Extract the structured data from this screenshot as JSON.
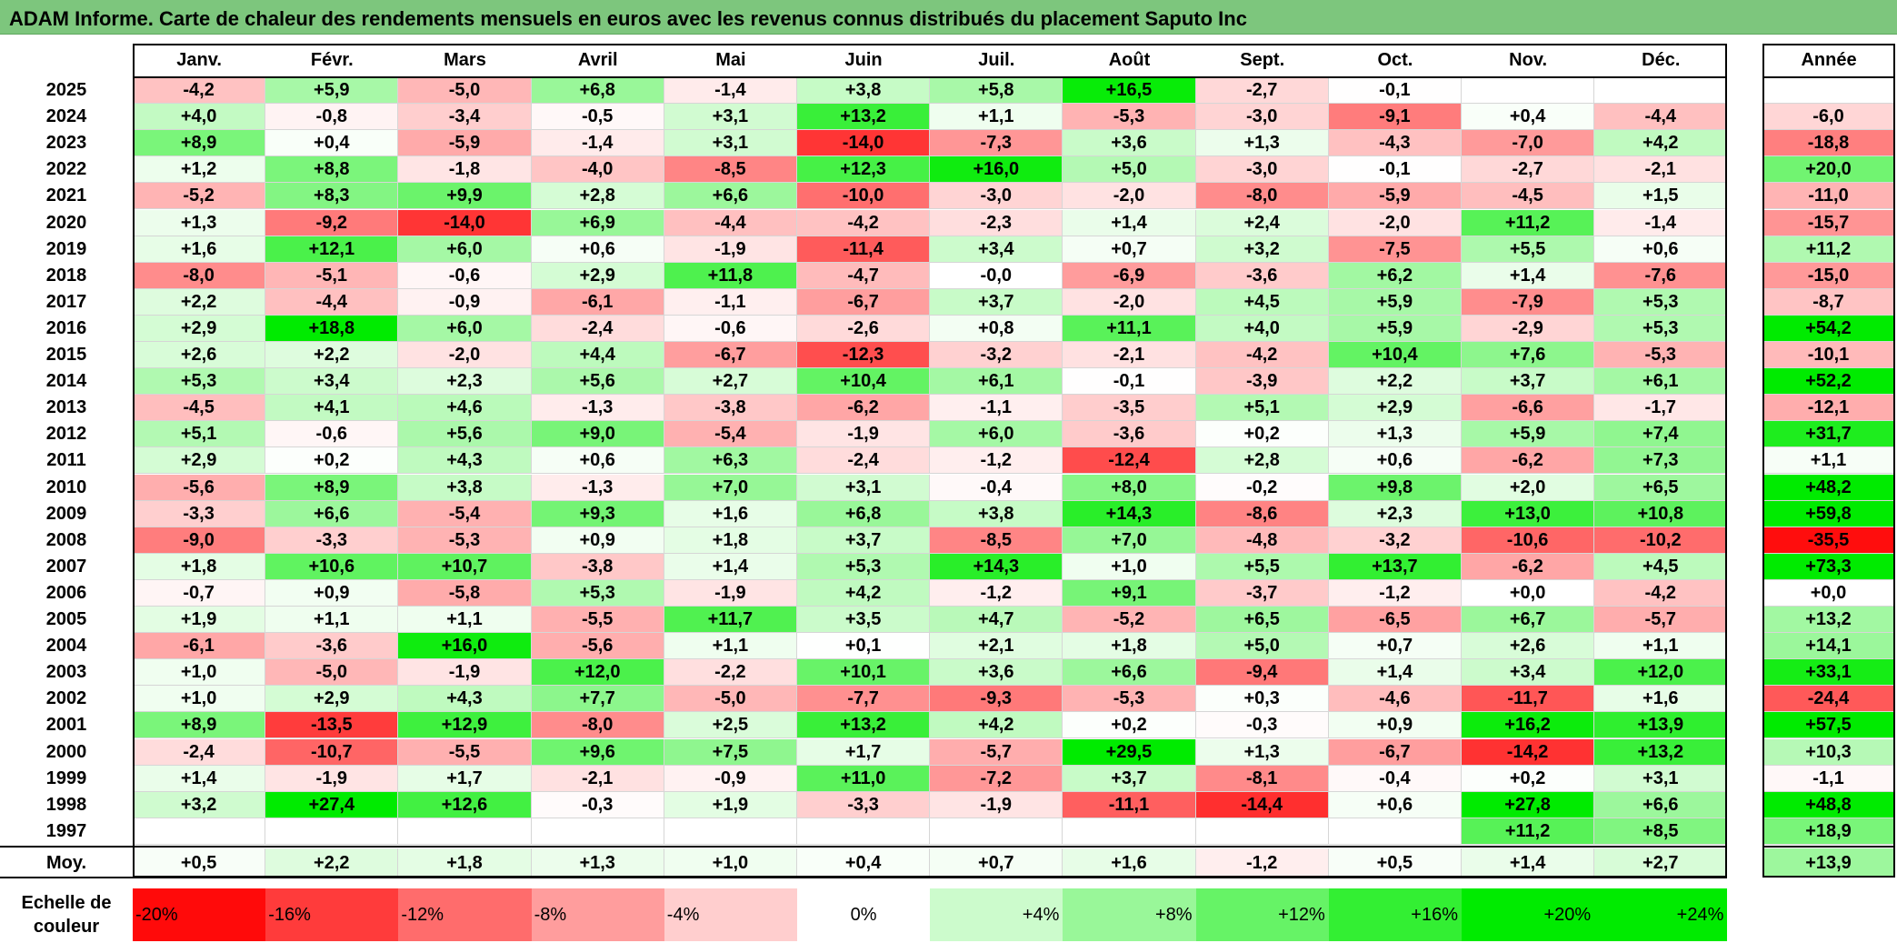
{
  "title": "ADAM Informe. Carte de chaleur des rendements mensuels en euros avec les revenus connus distribués du placement Saputo Inc",
  "chart_data": {
    "type": "heatmap",
    "title": "ADAM Informe. Carte de chaleur des rendements mensuels en euros avec les revenus connus distribués du placement Saputo Inc",
    "months": [
      "Janv.",
      "Févr.",
      "Mars",
      "Avril",
      "Mai",
      "Juin",
      "Juil.",
      "Août",
      "Sept.",
      "Oct.",
      "Nov.",
      "Déc."
    ],
    "year_header": "Année",
    "rows": [
      {
        "year": "2025",
        "values": [
          "-4,2",
          "+5,9",
          "-5,0",
          "+6,8",
          "-1,4",
          "+3,8",
          "+5,8",
          "+16,5",
          "-2,7",
          "-0,1",
          "",
          ""
        ],
        "annual": ""
      },
      {
        "year": "2024",
        "values": [
          "+4,0",
          "-0,8",
          "-3,4",
          "-0,5",
          "+3,1",
          "+13,2",
          "+1,1",
          "-5,3",
          "-3,0",
          "-9,1",
          "+0,4",
          "-4,4"
        ],
        "annual": "-6,0"
      },
      {
        "year": "2023",
        "values": [
          "+8,9",
          "+0,4",
          "-5,9",
          "-1,4",
          "+3,1",
          "-14,0",
          "-7,3",
          "+3,6",
          "+1,3",
          "-4,3",
          "-7,0",
          "+4,2"
        ],
        "annual": "-18,8"
      },
      {
        "year": "2022",
        "values": [
          "+1,2",
          "+8,8",
          "-1,8",
          "-4,0",
          "-8,5",
          "+12,3",
          "+16,0",
          "+5,0",
          "-3,0",
          "-0,1",
          "-2,7",
          "-2,1"
        ],
        "annual": "+20,0"
      },
      {
        "year": "2021",
        "values": [
          "-5,2",
          "+8,3",
          "+9,9",
          "+2,8",
          "+6,6",
          "-10,0",
          "-3,0",
          "-2,0",
          "-8,0",
          "-5,9",
          "-4,5",
          "+1,5"
        ],
        "annual": "-11,0"
      },
      {
        "year": "2020",
        "values": [
          "+1,3",
          "-9,2",
          "-14,0",
          "+6,9",
          "-4,4",
          "-4,2",
          "-2,3",
          "+1,4",
          "+2,4",
          "-2,0",
          "+11,2",
          "-1,4"
        ],
        "annual": "-15,7"
      },
      {
        "year": "2019",
        "values": [
          "+1,6",
          "+12,1",
          "+6,0",
          "+0,6",
          "-1,9",
          "-11,4",
          "+3,4",
          "+0,7",
          "+3,2",
          "-7,5",
          "+5,5",
          "+0,6"
        ],
        "annual": "+11,2"
      },
      {
        "year": "2018",
        "values": [
          "-8,0",
          "-5,1",
          "-0,6",
          "+2,9",
          "+11,8",
          "-4,7",
          "-0,0",
          "-6,9",
          "-3,6",
          "+6,2",
          "+1,4",
          "-7,6"
        ],
        "annual": "-15,0"
      },
      {
        "year": "2017",
        "values": [
          "+2,2",
          "-4,4",
          "-0,9",
          "-6,1",
          "-1,1",
          "-6,7",
          "+3,7",
          "-2,0",
          "+4,5",
          "+5,9",
          "-7,9",
          "+5,3"
        ],
        "annual": "-8,7"
      },
      {
        "year": "2016",
        "values": [
          "+2,9",
          "+18,8",
          "+6,0",
          "-2,4",
          "-0,6",
          "-2,6",
          "+0,8",
          "+11,1",
          "+4,0",
          "+5,9",
          "-2,9",
          "+5,3"
        ],
        "annual": "+54,2"
      },
      {
        "year": "2015",
        "values": [
          "+2,6",
          "+2,2",
          "-2,0",
          "+4,4",
          "-6,7",
          "-12,3",
          "-3,2",
          "-2,1",
          "-4,2",
          "+10,4",
          "+7,6",
          "-5,3"
        ],
        "annual": "-10,1"
      },
      {
        "year": "2014",
        "values": [
          "+5,3",
          "+3,4",
          "+2,3",
          "+5,6",
          "+2,7",
          "+10,4",
          "+6,1",
          "-0,1",
          "-3,9",
          "+2,2",
          "+3,7",
          "+6,1"
        ],
        "annual": "+52,2"
      },
      {
        "year": "2013",
        "values": [
          "-4,5",
          "+4,1",
          "+4,6",
          "-1,3",
          "-3,8",
          "-6,2",
          "-1,1",
          "-3,5",
          "+5,1",
          "+2,9",
          "-6,6",
          "-1,7"
        ],
        "annual": "-12,1"
      },
      {
        "year": "2012",
        "values": [
          "+5,1",
          "-0,6",
          "+5,6",
          "+9,0",
          "-5,4",
          "-1,9",
          "+6,0",
          "-3,6",
          "+0,2",
          "+1,3",
          "+5,9",
          "+7,4"
        ],
        "annual": "+31,7"
      },
      {
        "year": "2011",
        "values": [
          "+2,9",
          "+0,2",
          "+4,3",
          "+0,6",
          "+6,3",
          "-2,4",
          "-1,2",
          "-12,4",
          "+2,8",
          "+0,6",
          "-6,2",
          "+7,3"
        ],
        "annual": "+1,1"
      },
      {
        "year": "2010",
        "values": [
          "-5,6",
          "+8,9",
          "+3,8",
          "-1,3",
          "+7,0",
          "+3,1",
          "-0,4",
          "+8,0",
          "-0,2",
          "+9,8",
          "+2,0",
          "+6,5"
        ],
        "annual": "+48,2"
      },
      {
        "year": "2009",
        "values": [
          "-3,3",
          "+6,6",
          "-5,4",
          "+9,3",
          "+1,6",
          "+6,8",
          "+3,8",
          "+14,3",
          "-8,6",
          "+2,3",
          "+13,0",
          "+10,8"
        ],
        "annual": "+59,8"
      },
      {
        "year": "2008",
        "values": [
          "-9,0",
          "-3,3",
          "-5,3",
          "+0,9",
          "+1,8",
          "+3,7",
          "-8,5",
          "+7,0",
          "-4,8",
          "-3,2",
          "-10,6",
          "-10,2"
        ],
        "annual": "-35,5"
      },
      {
        "year": "2007",
        "values": [
          "+1,8",
          "+10,6",
          "+10,7",
          "-3,8",
          "+1,4",
          "+5,3",
          "+14,3",
          "+1,0",
          "+5,5",
          "+13,7",
          "-6,2",
          "+4,5"
        ],
        "annual": "+73,3"
      },
      {
        "year": "2006",
        "values": [
          "-0,7",
          "+0,9",
          "-5,8",
          "+5,3",
          "-1,9",
          "+4,2",
          "-1,2",
          "+9,1",
          "-3,7",
          "-1,2",
          "+0,0",
          "-4,2"
        ],
        "annual": "+0,0"
      },
      {
        "year": "2005",
        "values": [
          "+1,9",
          "+1,1",
          "+1,1",
          "-5,5",
          "+11,7",
          "+3,5",
          "+4,7",
          "-5,2",
          "+6,5",
          "-6,5",
          "+6,7",
          "-5,7"
        ],
        "annual": "+13,2"
      },
      {
        "year": "2004",
        "values": [
          "-6,1",
          "-3,6",
          "+16,0",
          "-5,6",
          "+1,1",
          "+0,1",
          "+2,1",
          "+1,8",
          "+5,0",
          "+0,7",
          "+2,6",
          "+1,1"
        ],
        "annual": "+14,1"
      },
      {
        "year": "2003",
        "values": [
          "+1,0",
          "-5,0",
          "-1,9",
          "+12,0",
          "-2,2",
          "+10,1",
          "+3,6",
          "+6,6",
          "-9,4",
          "+1,4",
          "+3,4",
          "+12,0"
        ],
        "annual": "+33,1"
      },
      {
        "year": "2002",
        "values": [
          "+1,0",
          "+2,9",
          "+4,3",
          "+7,7",
          "-5,0",
          "-7,7",
          "-9,3",
          "-5,3",
          "+0,3",
          "-4,6",
          "-11,7",
          "+1,6"
        ],
        "annual": "-24,4"
      },
      {
        "year": "2001",
        "values": [
          "+8,9",
          "-13,5",
          "+12,9",
          "-8,0",
          "+2,5",
          "+13,2",
          "+4,2",
          "+0,2",
          "-0,3",
          "+0,9",
          "+16,2",
          "+13,9"
        ],
        "annual": "+57,5"
      },
      {
        "year": "2000",
        "values": [
          "-2,4",
          "-10,7",
          "-5,5",
          "+9,6",
          "+7,5",
          "+1,7",
          "-5,7",
          "+29,5",
          "+1,3",
          "-6,7",
          "-14,2",
          "+13,2"
        ],
        "annual": "+10,3"
      },
      {
        "year": "1999",
        "values": [
          "+1,4",
          "-1,9",
          "+1,7",
          "-2,1",
          "-0,9",
          "+11,0",
          "-7,2",
          "+3,7",
          "-8,1",
          "-0,4",
          "+0,2",
          "+3,1"
        ],
        "annual": "-1,1"
      },
      {
        "year": "1998",
        "values": [
          "+3,2",
          "+27,4",
          "+12,6",
          "-0,3",
          "+1,9",
          "-3,3",
          "-1,9",
          "-11,1",
          "-14,4",
          "+0,6",
          "+27,8",
          "+6,6"
        ],
        "annual": "+48,8"
      },
      {
        "year": "1997",
        "values": [
          "",
          "",
          "",
          "",
          "",
          "",
          "",
          "",
          "",
          "",
          "+11,2",
          "+8,5"
        ],
        "annual": "+18,9"
      }
    ],
    "average": {
      "label": "Moy.",
      "values": [
        "+0,5",
        "+2,2",
        "+1,8",
        "+1,3",
        "+1,0",
        "+0,4",
        "+0,7",
        "+1,6",
        "-1,2",
        "+0,5",
        "+1,4",
        "+2,7"
      ],
      "annual": "+13,9"
    },
    "scale": {
      "label": "Echelle de couleur",
      "steps": [
        "-20%",
        "-16%",
        "-12%",
        "-8%",
        "-4%",
        "0%",
        "+4%",
        "+8%",
        "+12%",
        "+16%",
        "+20%",
        "+24%"
      ],
      "step_values": [
        -20,
        -16,
        -12,
        -8,
        -4,
        0,
        4,
        8,
        12,
        16,
        20,
        24
      ]
    },
    "colors": {
      "negative_max": "#ff0000",
      "zero": "#ffffff",
      "positive_max": "#00ee00",
      "title_bar": "#7dc67d"
    }
  }
}
